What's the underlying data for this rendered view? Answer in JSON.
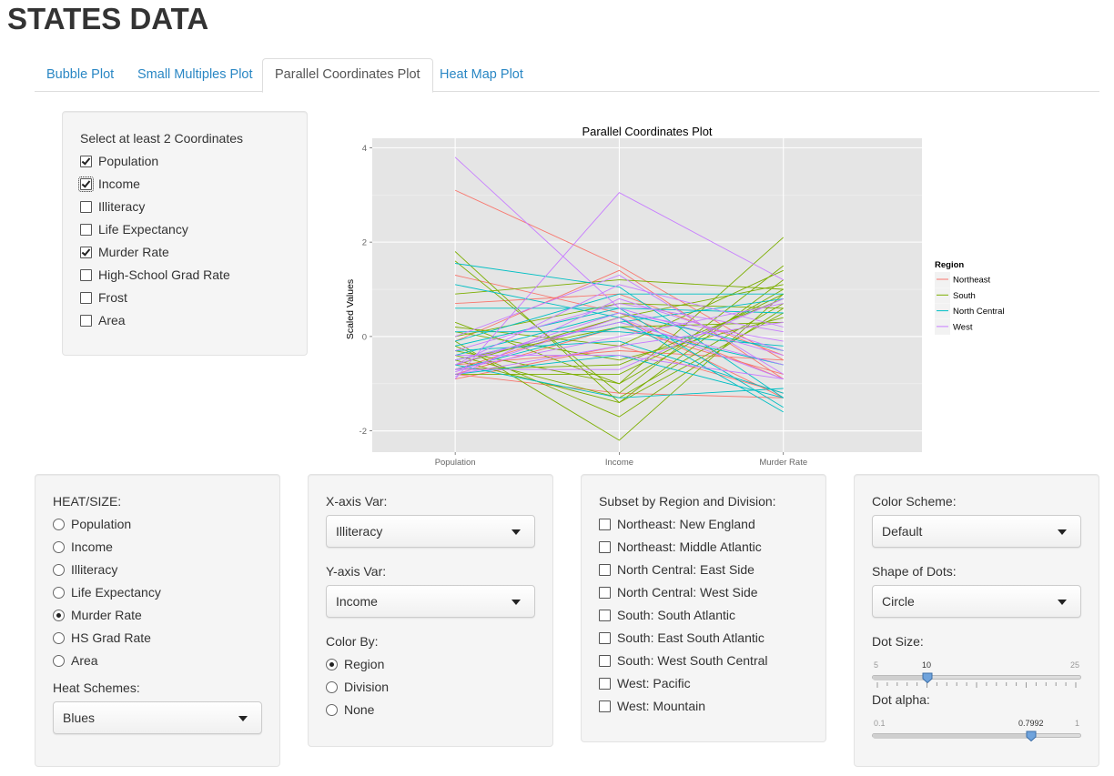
{
  "page_title": "STATES DATA",
  "tabs": [
    {
      "label": "Bubble Plot",
      "active": false
    },
    {
      "label": "Small Multiples Plot",
      "active": false
    },
    {
      "label": "Parallel Coordinates Plot",
      "active": true
    },
    {
      "label": "Heat Map Plot",
      "active": false
    }
  ],
  "coordinates_panel": {
    "label": "Select at least 2 Coordinates",
    "options": [
      {
        "label": "Population",
        "checked": true
      },
      {
        "label": "Income",
        "checked": true,
        "focused": true
      },
      {
        "label": "Illiteracy",
        "checked": false
      },
      {
        "label": "Life Expectancy",
        "checked": false
      },
      {
        "label": "Murder Rate",
        "checked": true
      },
      {
        "label": "High-School Grad Rate",
        "checked": false
      },
      {
        "label": "Frost",
        "checked": false
      },
      {
        "label": "Area",
        "checked": false
      }
    ]
  },
  "chart_data": {
    "type": "line",
    "title": "Parallel Coordinates Plot",
    "xlabel": "",
    "ylabel": "Scaled Values",
    "categories": [
      "Population",
      "Income",
      "Murder Rate"
    ],
    "y_ticks": [
      "-2",
      "0",
      "2",
      "4"
    ],
    "ylim": [
      -2.45,
      4.2
    ],
    "grid": true,
    "background": "#e5e5e5",
    "legend": {
      "title": "Region",
      "placement": "right"
    },
    "series": [
      {
        "name": "Northeast",
        "color": "#f8766d",
        "lines": [
          [
            3.1,
            1.5,
            -0.5
          ],
          [
            1.3,
            0.5,
            -0.9
          ],
          [
            0.7,
            0.9,
            -0.4
          ],
          [
            -0.1,
            1.4,
            -0.9
          ],
          [
            -0.7,
            0.4,
            -1.3
          ],
          [
            -0.8,
            0.2,
            -0.8
          ],
          [
            -0.6,
            -0.3,
            -0.5
          ],
          [
            -0.9,
            -0.2,
            -1.2
          ],
          [
            -0.8,
            -1.2,
            -1.3
          ]
        ]
      },
      {
        "name": "South",
        "color": "#7cae00",
        "lines": [
          [
            1.8,
            -1.4,
            1.2
          ],
          [
            1.6,
            -1.2,
            1.5
          ],
          [
            0.9,
            1.2,
            1.0
          ],
          [
            0.3,
            -1.0,
            2.1
          ],
          [
            0.2,
            -0.2,
            1.4
          ],
          [
            0.1,
            -0.5,
            0.4
          ],
          [
            -0.1,
            -2.2,
            0.9
          ],
          [
            -0.2,
            -1.7,
            0.6
          ],
          [
            -0.3,
            -1.0,
            1.0
          ],
          [
            -0.4,
            -1.3,
            0.7
          ],
          [
            -0.5,
            0.2,
            0.3
          ],
          [
            -0.6,
            0.4,
            1.1
          ],
          [
            -0.7,
            -0.6,
            0.8
          ],
          [
            -0.5,
            -1.4,
            0.5
          ],
          [
            -0.8,
            -0.8,
            0.9
          ],
          [
            0.0,
            0.7,
            0.6
          ]
        ]
      },
      {
        "name": "North Central",
        "color": "#00bfc4",
        "lines": [
          [
            1.55,
            1.05,
            -1.3
          ],
          [
            1.1,
            0.4,
            -1.6
          ],
          [
            0.6,
            0.6,
            0.5
          ],
          [
            0.1,
            0.1,
            -0.2
          ],
          [
            -0.1,
            0.9,
            0.9
          ],
          [
            -0.3,
            -0.1,
            -1.2
          ],
          [
            -0.4,
            0.5,
            -0.3
          ],
          [
            -0.5,
            0.3,
            0.8
          ],
          [
            -0.6,
            -1.3,
            -1.1
          ],
          [
            -0.7,
            0.2,
            -0.6
          ],
          [
            -0.8,
            -0.4,
            -1.3
          ],
          [
            -0.2,
            0.6,
            -1.5
          ]
        ]
      },
      {
        "name": "West",
        "color": "#c77cff",
        "lines": [
          [
            3.8,
            0.6,
            -0.4
          ],
          [
            -0.9,
            3.05,
            1.2
          ],
          [
            0.0,
            1.3,
            -0.8
          ],
          [
            -0.3,
            0.7,
            0.1
          ],
          [
            -0.5,
            0.3,
            -0.6
          ],
          [
            -0.6,
            1.1,
            0.2
          ],
          [
            -0.7,
            0.0,
            0.7
          ],
          [
            -0.75,
            0.4,
            -0.9
          ],
          [
            -0.8,
            -0.2,
            0.3
          ],
          [
            -0.85,
            0.8,
            -0.3
          ],
          [
            -0.7,
            -0.7,
            0.8
          ],
          [
            -0.6,
            0.5,
            -0.1
          ],
          [
            -0.4,
            -0.4,
            -0.9
          ]
        ]
      }
    ]
  },
  "heat_panel": {
    "label": "HEAT/SIZE:",
    "options": [
      {
        "label": "Population",
        "selected": false
      },
      {
        "label": "Income",
        "selected": false
      },
      {
        "label": "Illiteracy",
        "selected": false
      },
      {
        "label": "Life Expectancy",
        "selected": false
      },
      {
        "label": "Murder Rate",
        "selected": true
      },
      {
        "label": "HS Grad Rate",
        "selected": false
      },
      {
        "label": "Area",
        "selected": false
      }
    ],
    "schemes_label": "Heat Schemes:",
    "schemes_value": "Blues"
  },
  "axis_panel": {
    "x_label": "X-axis Var:",
    "x_value": "Illiteracy",
    "y_label": "Y-axis Var:",
    "y_value": "Income",
    "color_label": "Color By:",
    "color_options": [
      {
        "label": "Region",
        "selected": true
      },
      {
        "label": "Division",
        "selected": false
      },
      {
        "label": "None",
        "selected": false
      }
    ]
  },
  "subset_panel": {
    "label": "Subset by Region and Division:",
    "options": [
      {
        "label": "Northeast: New England",
        "checked": false
      },
      {
        "label": "Northeast: Middle Atlantic",
        "checked": false
      },
      {
        "label": "North Central: East Side",
        "checked": false
      },
      {
        "label": "North Central: West Side",
        "checked": false
      },
      {
        "label": "South: South Atlantic",
        "checked": false
      },
      {
        "label": "South: East South Atlantic",
        "checked": false
      },
      {
        "label": "South: West South Central",
        "checked": false
      },
      {
        "label": "West: Pacific",
        "checked": false
      },
      {
        "label": "West: Mountain",
        "checked": false
      }
    ]
  },
  "style_panel": {
    "scheme_label": "Color Scheme:",
    "scheme_value": "Default",
    "shape_label": "Shape of Dots:",
    "shape_value": "Circle",
    "size_label": "Dot Size:",
    "size_min": "5",
    "size_max": "25",
    "size_value": "10",
    "size_fraction": 0.25,
    "alpha_label": "Dot alpha:",
    "alpha_min": "0.1",
    "alpha_max": "1",
    "alpha_value": "0.7992",
    "alpha_fraction": 0.7769
  }
}
